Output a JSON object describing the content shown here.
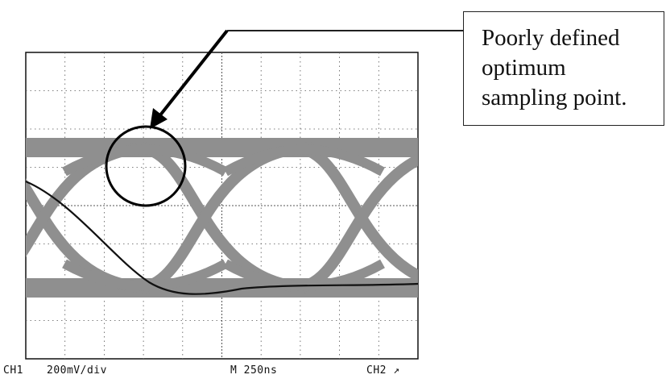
{
  "callout": {
    "lines": [
      "Poorly defined",
      "optimum",
      "sampling point."
    ]
  },
  "status_bar": {
    "channel": "CH1",
    "scale": "200mV/div",
    "timebase": "M 250ns",
    "trigger": "CH2 ↗"
  },
  "colors": {
    "eye_trace": "#8f8f8f",
    "single_trace": "#111111",
    "grid": "#555555",
    "circle": "#000000",
    "arrow": "#000000"
  }
}
